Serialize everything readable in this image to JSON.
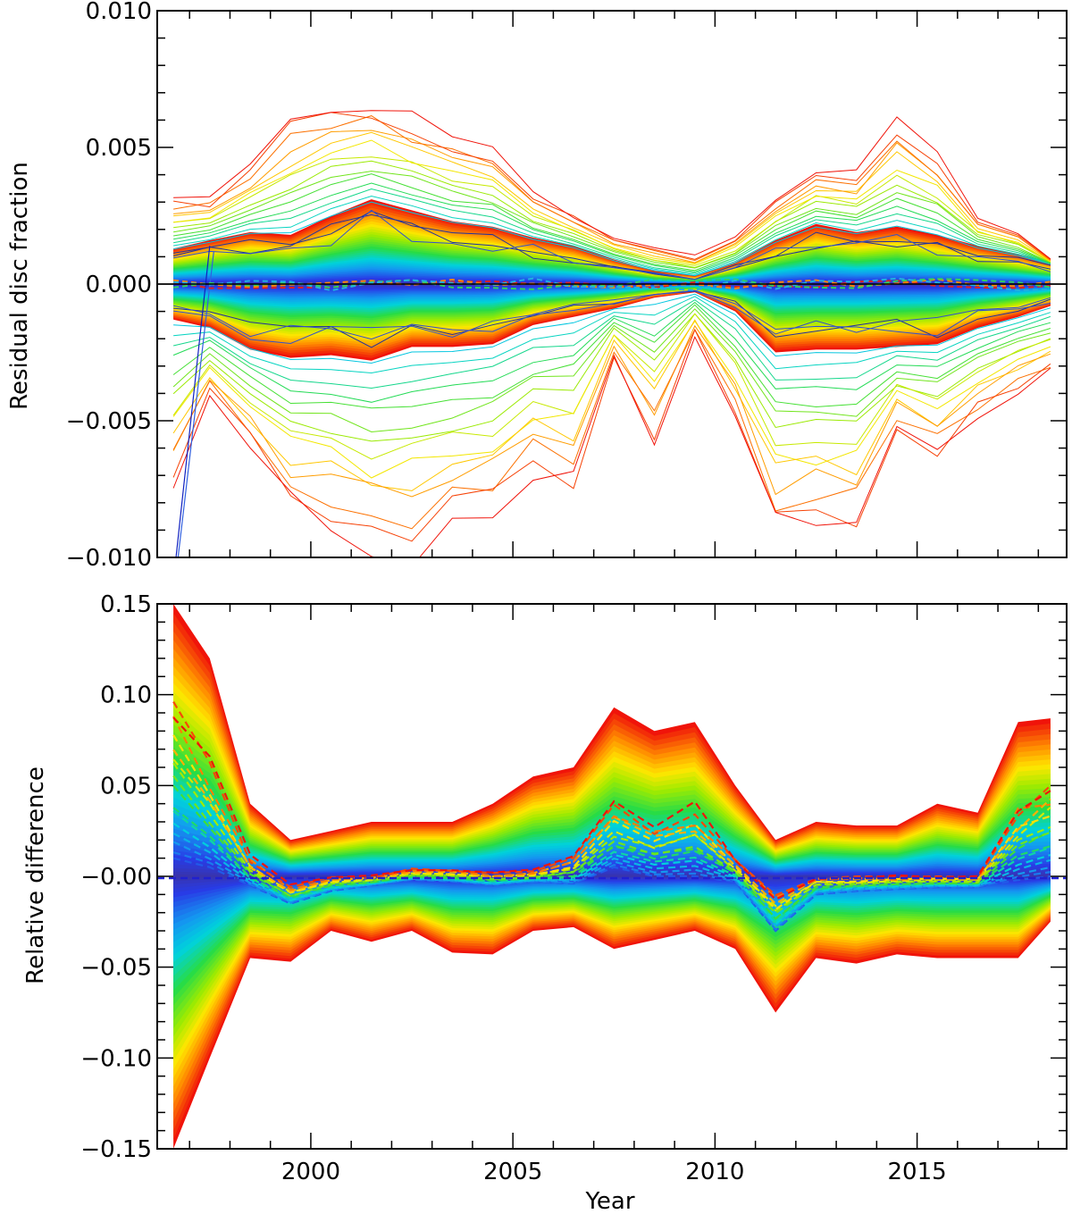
{
  "chart_data": [
    {
      "type": "line",
      "panel": "top",
      "ylabel": "Residual disc fraction",
      "xlabel": "",
      "xlim": [
        1996.2,
        2018.7
      ],
      "ylim": [
        -0.01,
        0.01
      ],
      "x_ticks": [
        2000,
        2005,
        2010,
        2015
      ],
      "y_ticks": [
        0.01,
        0.005,
        0.0,
        -0.005,
        -0.01
      ],
      "y_tick_labels": [
        "0.010",
        "0.005",
        "0.000",
        "−0.005",
        "−0.010"
      ],
      "show_x_tick_labels": false,
      "zero_line": true,
      "colormap": "rainbow (violet → blue → cyan → green → yellow → orange → red)",
      "x": [
        1996.6,
        1997.5,
        1998.5,
        1999.5,
        2000.5,
        2001.5,
        2002.5,
        2003.5,
        2004.5,
        2005.5,
        2006.5,
        2007.5,
        2008.5,
        2009.5,
        2010.5,
        2011.5,
        2012.5,
        2013.5,
        2014.5,
        2015.5,
        2016.5,
        2017.5,
        2018.3
      ],
      "band_outer_upper": [
        0.0013,
        0.0016,
        0.0019,
        0.0018,
        0.0025,
        0.0031,
        0.0027,
        0.0023,
        0.0021,
        0.0017,
        0.0014,
        0.0009,
        0.0005,
        0.0003,
        0.0008,
        0.0016,
        0.0022,
        0.0019,
        0.0021,
        0.0018,
        0.0014,
        0.0011,
        0.0008
      ],
      "band_outer_lower": [
        -0.0013,
        -0.0016,
        -0.0024,
        -0.0027,
        -0.0026,
        -0.0028,
        -0.0023,
        -0.0023,
        -0.0022,
        -0.0015,
        -0.0012,
        -0.0009,
        -0.0005,
        -0.0003,
        -0.001,
        -0.0025,
        -0.0024,
        -0.0024,
        -0.0023,
        -0.0022,
        -0.0016,
        -0.0012,
        -0.0008
      ],
      "envelope_upper": [
        0.0031,
        0.0031,
        0.0042,
        0.0059,
        0.0064,
        0.0065,
        0.006,
        0.0053,
        0.0049,
        0.0033,
        0.0025,
        0.0017,
        0.0013,
        0.001,
        0.0017,
        0.0031,
        0.0041,
        0.004,
        0.0058,
        0.0047,
        0.0024,
        0.0019,
        0.0009
      ],
      "envelope_lower": [
        -0.0073,
        -0.0041,
        -0.006,
        -0.008,
        -0.0088,
        -0.0094,
        -0.0097,
        -0.0089,
        -0.0082,
        -0.0069,
        -0.0074,
        -0.0027,
        -0.0058,
        -0.0019,
        -0.0049,
        -0.0089,
        -0.0088,
        -0.0088,
        -0.0053,
        -0.0063,
        -0.0049,
        -0.0038,
        -0.0033
      ]
    },
    {
      "type": "area",
      "panel": "bottom",
      "ylabel": "Relative difference",
      "xlabel": "Year",
      "xlim": [
        1996.2,
        2018.7
      ],
      "ylim": [
        -0.15,
        0.15
      ],
      "x_ticks": [
        2000,
        2005,
        2010,
        2015
      ],
      "x_tick_labels": [
        "2000",
        "2005",
        "2010",
        "2015"
      ],
      "y_ticks": [
        0.15,
        0.1,
        0.05,
        0.0,
        -0.05,
        -0.1,
        -0.15
      ],
      "y_tick_labels": [
        "0.15",
        "0.10",
        "0.05",
        "−0.00",
        "−0.05",
        "−0.10",
        "−0.15"
      ],
      "colormap": "rainbow (violet → blue → cyan → green → yellow → orange → red)",
      "x": [
        1996.6,
        1997.5,
        1998.5,
        1999.5,
        2000.5,
        2001.5,
        2002.5,
        2003.5,
        2004.5,
        2005.5,
        2006.5,
        2007.5,
        2008.5,
        2009.5,
        2010.5,
        2011.5,
        2012.5,
        2013.5,
        2014.5,
        2015.5,
        2016.5,
        2017.5,
        2018.3
      ],
      "band_outer_upper": [
        0.15,
        0.12,
        0.04,
        0.02,
        0.025,
        0.03,
        0.03,
        0.03,
        0.04,
        0.055,
        0.06,
        0.093,
        0.08,
        0.085,
        0.05,
        0.02,
        0.03,
        0.028,
        0.028,
        0.04,
        0.035,
        0.085,
        0.087
      ],
      "band_outer_lower": [
        -0.15,
        -0.1,
        -0.045,
        -0.047,
        -0.03,
        -0.036,
        -0.03,
        -0.042,
        -0.043,
        -0.03,
        -0.028,
        -0.04,
        -0.035,
        -0.03,
        -0.04,
        -0.075,
        -0.045,
        -0.048,
        -0.043,
        -0.045,
        -0.045,
        -0.045,
        -0.025
      ],
      "dashed_series_envelope_upper": [
        0.1,
        0.06,
        0.01,
        -0.005,
        0.0,
        0.0,
        0.004,
        0.004,
        0.002,
        0.003,
        0.01,
        0.038,
        0.028,
        0.038,
        0.01,
        -0.01,
        0.0,
        0.0,
        0.0,
        0.0,
        0.0,
        0.04,
        0.055
      ],
      "dashed_series_envelope_lower": [
        0.01,
        0.005,
        -0.005,
        -0.015,
        -0.008,
        -0.005,
        -0.002,
        -0.003,
        -0.005,
        -0.003,
        -0.004,
        0.005,
        0.0,
        0.0,
        -0.003,
        -0.03,
        -0.01,
        -0.008,
        -0.007,
        -0.006,
        -0.006,
        -0.002,
        0.0
      ]
    }
  ]
}
